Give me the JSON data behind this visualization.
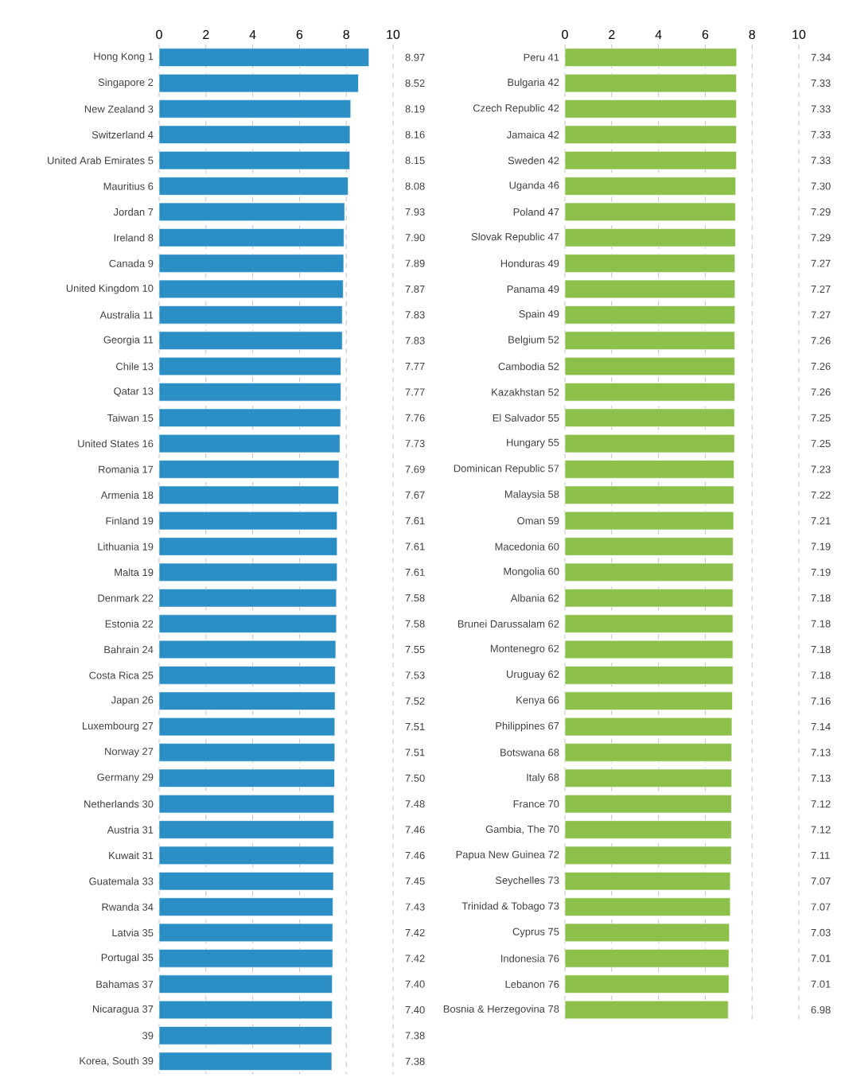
{
  "chart_data": [
    {
      "type": "bar",
      "orientation": "horizontal",
      "color": "#2b8fc6",
      "grid": "x",
      "xlim": [
        0,
        10
      ],
      "xticks": [
        0,
        2,
        4,
        6,
        8,
        10
      ],
      "categories": [
        "Hong Kong  1",
        "Singapore  2",
        "New Zealand  3",
        "Switzerland  4",
        "United Arab Emirates  5",
        "Mauritius  6",
        "Jordan  7",
        "Ireland  8",
        "Canada  9",
        "United Kingdom  10",
        "Australia  11",
        "Georgia  11",
        "Chile  13",
        "Qatar  13",
        "Taiwan  15",
        "United States  16",
        "Romania  17",
        "Armenia  18",
        "Finland  19",
        "Lithuania  19",
        "Malta  19",
        "Denmark  22",
        "Estonia  22",
        "Bahrain  24",
        "Costa Rica  25",
        "Japan  26",
        "Luxembourg  27",
        "Norway  27",
        "Germany  29",
        "Netherlands  30",
        "Austria  31",
        "Kuwait  31",
        "Guatemala  33",
        "Rwanda  34",
        "Latvia  35",
        "Portugal  35",
        "Bahamas  37",
        "Nicaragua  37",
        "39",
        "Korea, South  39"
      ],
      "values": [
        8.97,
        8.52,
        8.19,
        8.16,
        8.15,
        8.08,
        7.93,
        7.9,
        7.89,
        7.87,
        7.83,
        7.83,
        7.77,
        7.77,
        7.76,
        7.73,
        7.69,
        7.67,
        7.61,
        7.61,
        7.61,
        7.58,
        7.58,
        7.55,
        7.53,
        7.52,
        7.51,
        7.51,
        7.5,
        7.48,
        7.46,
        7.46,
        7.45,
        7.43,
        7.42,
        7.42,
        7.4,
        7.4,
        7.38,
        7.38
      ],
      "value_labels": [
        "8.97",
        "8.52",
        "8.19",
        "8.16",
        "8.15",
        "8.08",
        "7.93",
        "7.90",
        "7.89",
        "7.87",
        "7.83",
        "7.83",
        "7.77",
        "7.77",
        "7.76",
        "7.73",
        "7.69",
        "7.67",
        "7.61",
        "7.61",
        "7.61",
        "7.58",
        "7.58",
        "7.55",
        "7.53",
        "7.52",
        "7.51",
        "7.51",
        "7.50",
        "7.48",
        "7.46",
        "7.46",
        "7.45",
        "7.43",
        "7.42",
        "7.42",
        "7.40",
        "7.40",
        "7.38",
        "7.38"
      ]
    },
    {
      "type": "bar",
      "orientation": "horizontal",
      "color": "#8cc04b",
      "grid": "x",
      "xlim": [
        0,
        10
      ],
      "xticks": [
        0,
        2,
        4,
        6,
        8,
        10
      ],
      "categories": [
        "Peru  41",
        "Bulgaria  42",
        "Czech Republic  42",
        "Jamaica  42",
        "Sweden  42",
        "Uganda  46",
        "Poland  47",
        "Slovak Republic  47",
        "Honduras  49",
        "Panama  49",
        "Spain  49",
        "Belgium  52",
        "Cambodia  52",
        "Kazakhstan  52",
        "El Salvador  55",
        "Hungary  55",
        "Dominican Republic  57",
        "Malaysia  58",
        "Oman  59",
        "Macedonia  60",
        "Mongolia  60",
        "Albania  62",
        "Brunei Darussalam  62",
        "Montenegro  62",
        "Uruguay  62",
        "Kenya  66",
        "Philippines  67",
        "Botswana  68",
        "Italy  68",
        "France  70",
        "Gambia, The  70",
        "Papua New Guinea  72",
        "Seychelles  73",
        "Trinidad & Tobago  73",
        "Cyprus  75",
        "Indonesia  76",
        "Lebanon  76",
        "Bosnia & Herzegovina  78"
      ],
      "values": [
        7.34,
        7.33,
        7.33,
        7.33,
        7.33,
        7.3,
        7.29,
        7.29,
        7.27,
        7.27,
        7.27,
        7.26,
        7.26,
        7.26,
        7.25,
        7.25,
        7.23,
        7.22,
        7.21,
        7.19,
        7.19,
        7.18,
        7.18,
        7.18,
        7.18,
        7.16,
        7.14,
        7.13,
        7.13,
        7.12,
        7.12,
        7.11,
        7.07,
        7.07,
        7.03,
        7.01,
        7.01,
        6.98
      ],
      "value_labels": [
        "7.34",
        "7.33",
        "7.33",
        "7.33",
        "7.33",
        "7.30",
        "7.29",
        "7.29",
        "7.27",
        "7.27",
        "7.27",
        "7.26",
        "7.26",
        "7.26",
        "7.25",
        "7.25",
        "7.23",
        "7.22",
        "7.21",
        "7.19",
        "7.19",
        "7.18",
        "7.18",
        "7.18",
        "7.18",
        "7.16",
        "7.14",
        "7.13",
        "7.13",
        "7.12",
        "7.12",
        "7.11",
        "7.07",
        "7.07",
        "7.03",
        "7.01",
        "7.01",
        "6.98"
      ]
    }
  ]
}
